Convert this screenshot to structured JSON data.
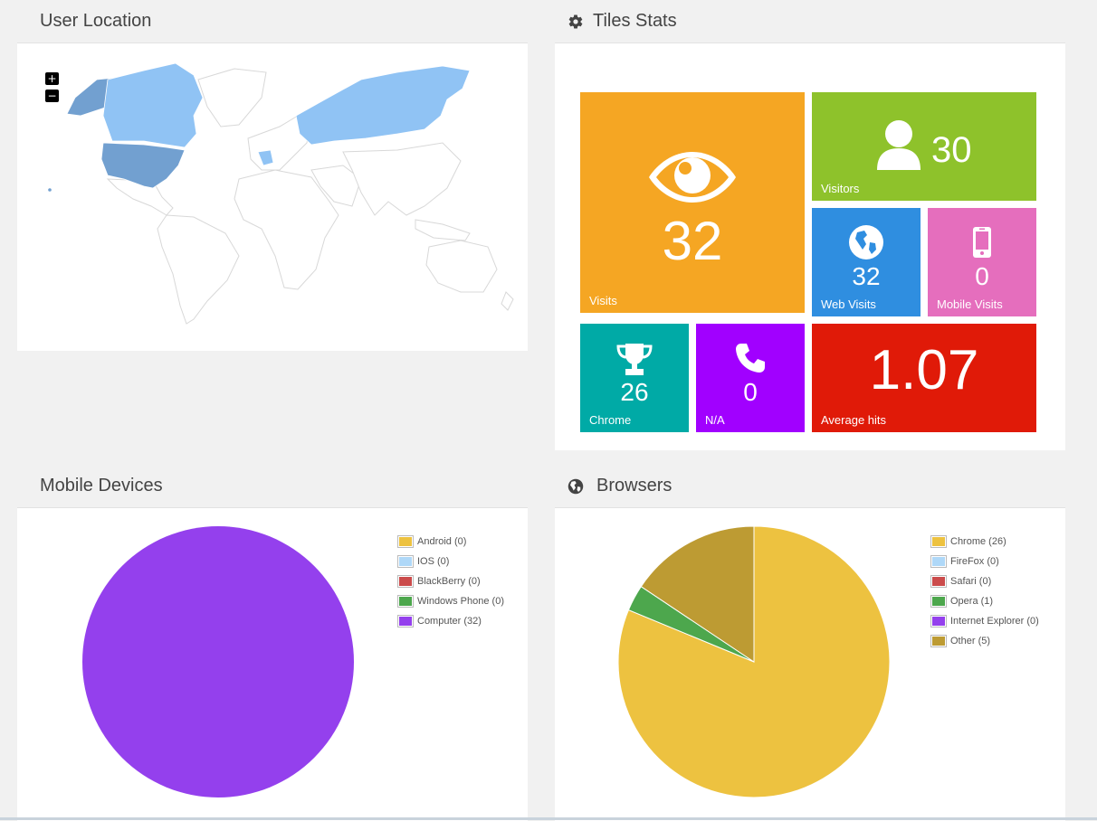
{
  "colors": {
    "map_base": "#ffffff",
    "map_stroke": "#dcdcdc",
    "map_light": "#90c3f4",
    "map_dark": "#72a0d0",
    "tile_visits": "#f5a623",
    "tile_visitors": "#8ec22b",
    "tile_web": "#2f8ee0",
    "tile_mobile": "#e56ebd",
    "tile_chrome": "#00aaa6",
    "tile_na": "#a100ff",
    "tile_avg": "#e01a08"
  },
  "panels": {
    "user_location": {
      "title": "User Location",
      "zoom_in": "+",
      "zoom_out": "−"
    },
    "tiles_stats": {
      "title": "Tiles Stats",
      "icon": "gear-icon"
    },
    "mobile_devices": {
      "title": "Mobile Devices"
    },
    "browsers": {
      "title": "Browsers",
      "icon": "globe-icon"
    }
  },
  "tiles": {
    "visits": {
      "value": "32",
      "label": "Visits",
      "icon": "eye-icon"
    },
    "visitors": {
      "value": "30",
      "label": "Visitors",
      "icon": "user-icon"
    },
    "web_visits": {
      "value": "32",
      "label": "Web Visits",
      "icon": "globe-icon"
    },
    "mobile_visits": {
      "value": "0",
      "label": "Mobile Visits",
      "icon": "mobile-icon"
    },
    "chrome": {
      "value": "26",
      "label": "Chrome",
      "icon": "trophy-icon"
    },
    "na": {
      "value": "0",
      "label": "N/A",
      "icon": "phone-icon"
    },
    "average_hits": {
      "value": "1.07",
      "label": "Average hits"
    }
  },
  "chart_data": [
    {
      "type": "pie",
      "categories": [
        "Android",
        "IOS",
        "BlackBerry",
        "Windows Phone",
        "Computer"
      ],
      "values": [
        0,
        0,
        0,
        0,
        32
      ],
      "colors": [
        "#edc240",
        "#afd8f8",
        "#cb4b4b",
        "#4da74d",
        "#9440ed"
      ],
      "legend": [
        "Android (0)",
        "IOS (0)",
        "BlackBerry (0)",
        "Windows Phone (0)",
        "Computer (32)"
      ],
      "legend_position": "top-right"
    },
    {
      "type": "pie",
      "categories": [
        "Chrome",
        "FireFox",
        "Safari",
        "Opera",
        "Internet Explorer",
        "Other"
      ],
      "values": [
        26,
        0,
        0,
        1,
        0,
        5
      ],
      "colors": [
        "#edc240",
        "#afd8f8",
        "#cb4b4b",
        "#4da74d",
        "#9440ed",
        "#bd9b33"
      ],
      "legend": [
        "Chrome (26)",
        "FireFox (0)",
        "Safari (0)",
        "Opera (1)",
        "Internet Explorer (0)",
        "Other (5)"
      ],
      "legend_position": "top-right"
    }
  ]
}
